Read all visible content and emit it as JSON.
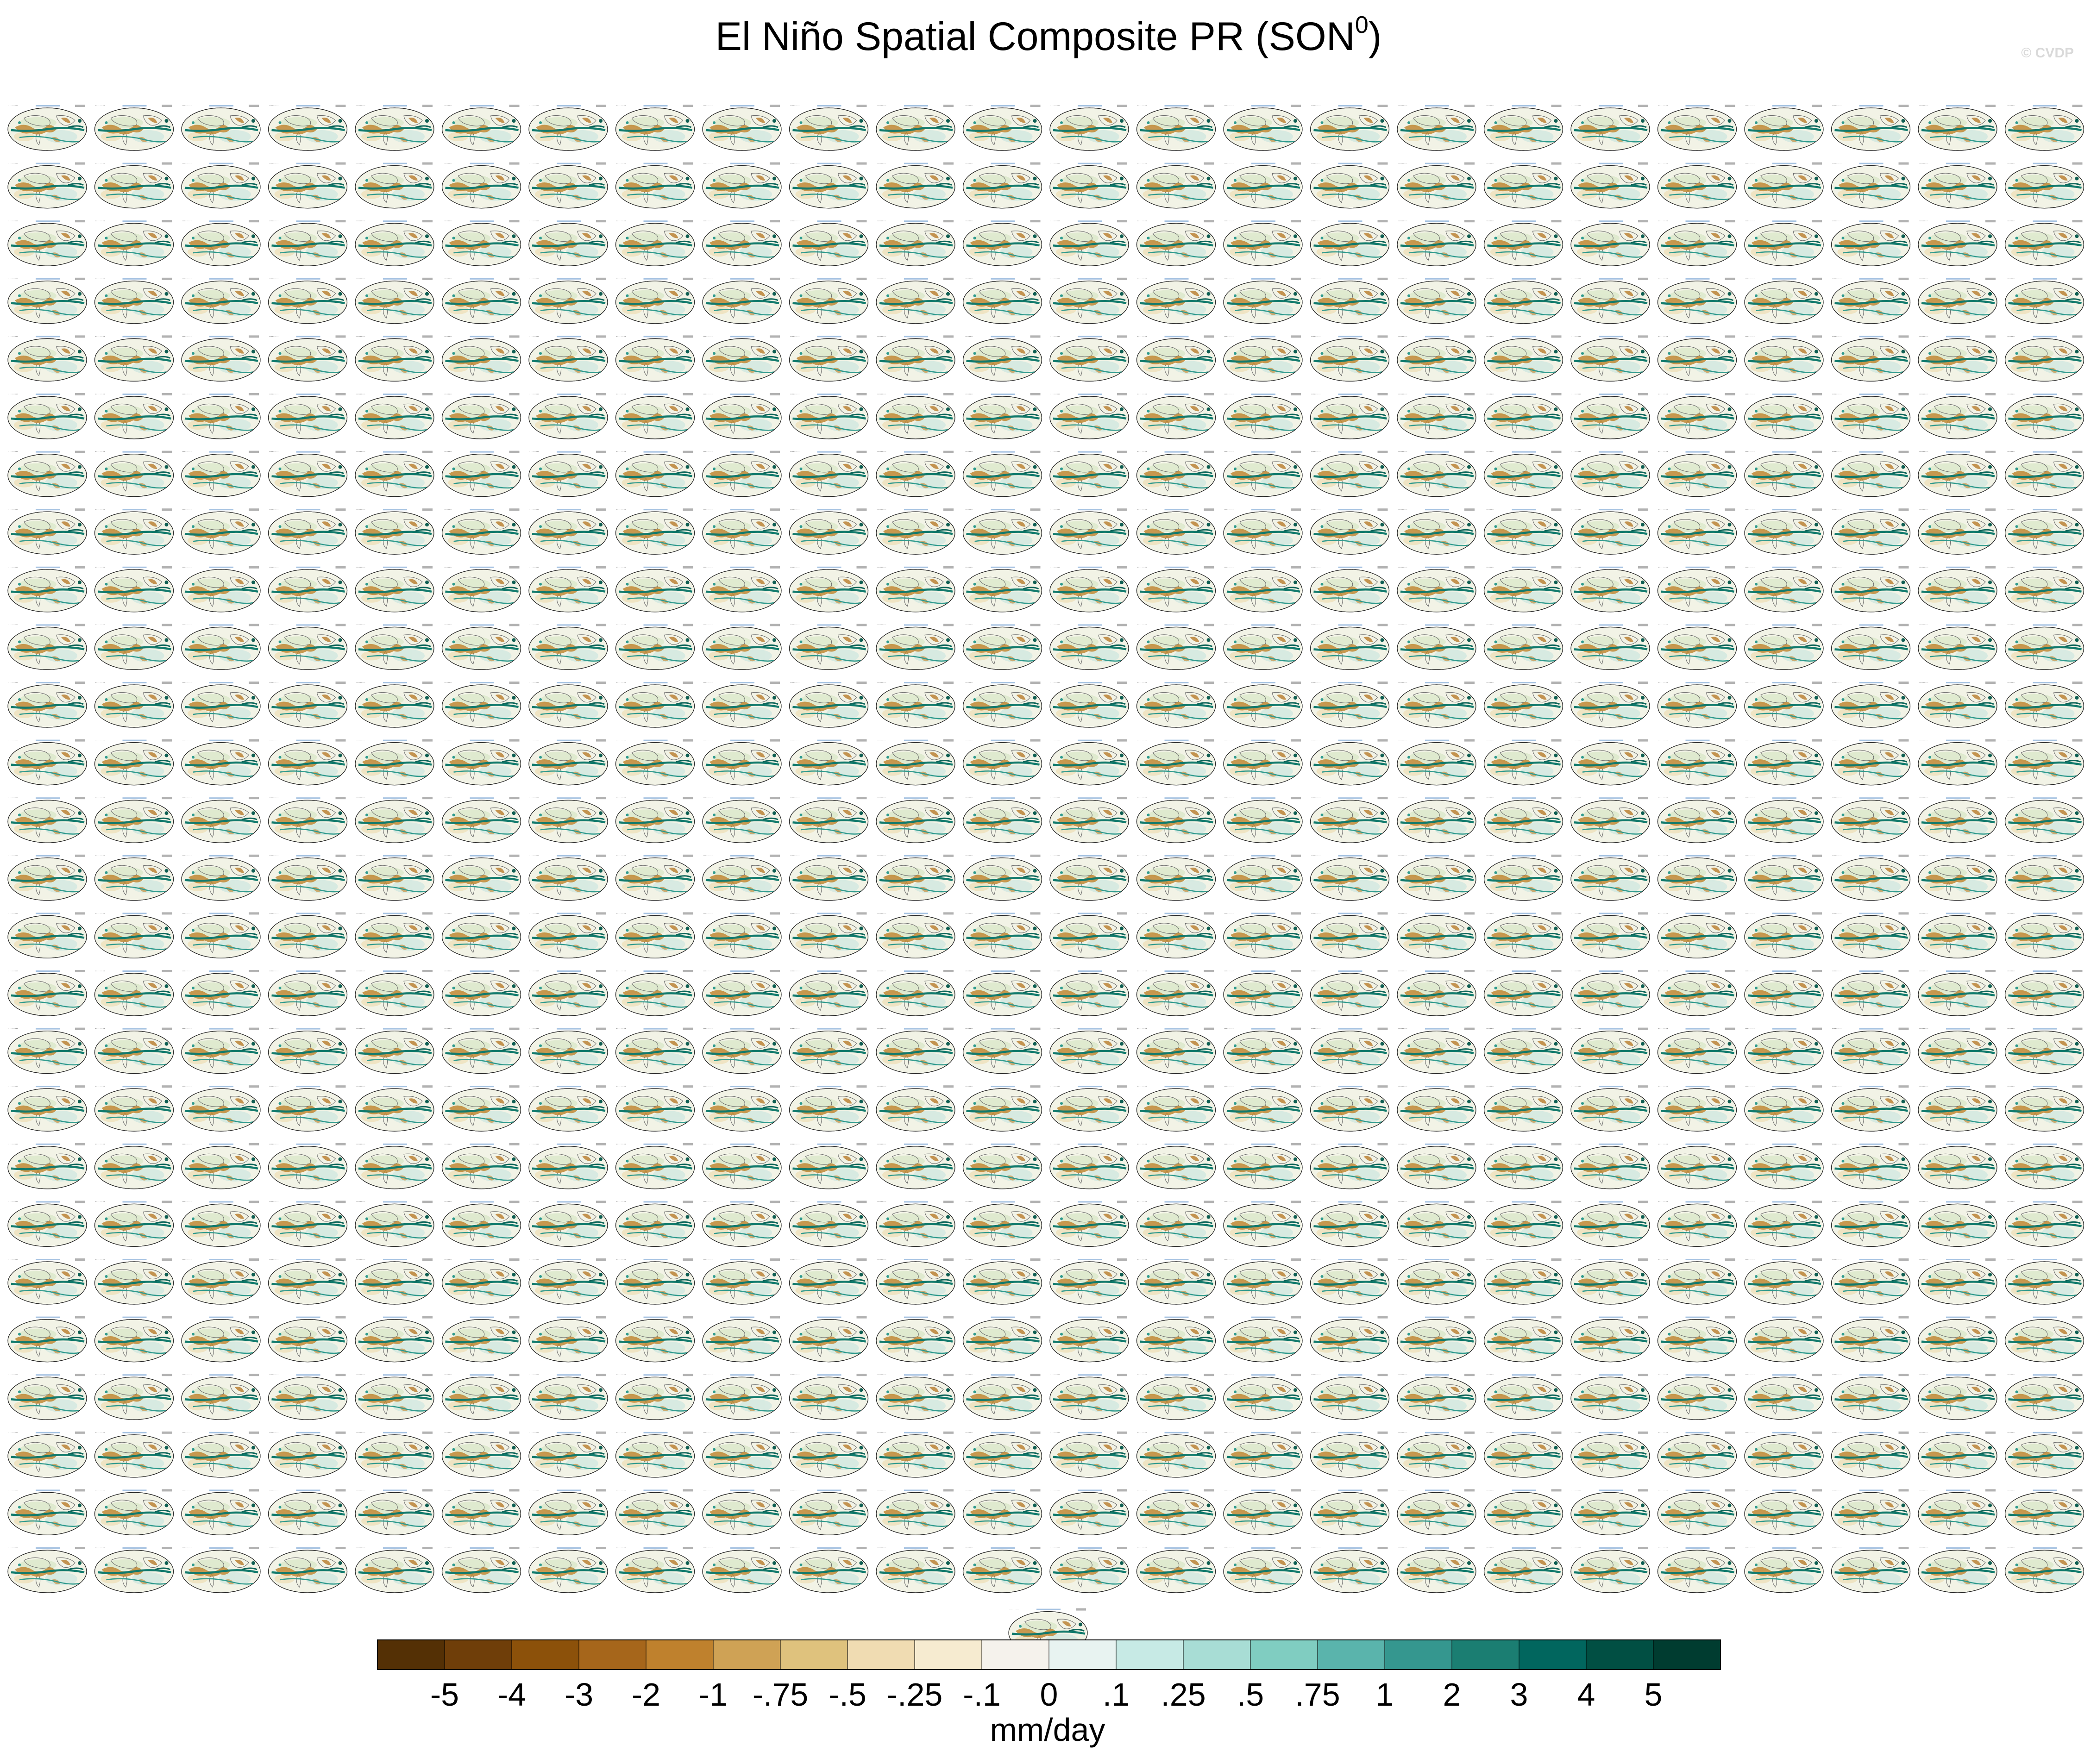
{
  "title": {
    "main": "El Niño Spatial Composite PR (SON",
    "superscript": "0",
    "close": ")"
  },
  "watermark": "© CVDP",
  "chart_data": {
    "type": "heatmap",
    "title": "El Niño Spatial Composite PR (SON⁰)",
    "panels": {
      "rows": 26,
      "columns": 24,
      "extra_centered_panels": 1,
      "projection": "Robinson global map",
      "note": "Panel header text is too small to read in the screenshot"
    },
    "colorbar": {
      "unit": "mm/day",
      "tick_labels": [
        "-5",
        "-4",
        "-3",
        "-2",
        "-1",
        "-.75",
        "-.5",
        "-.25",
        "-.1",
        "0",
        ".1",
        ".25",
        ".5",
        ".75",
        "1",
        "2",
        "3",
        "4",
        "5"
      ],
      "levels": [
        -5,
        -4,
        -3,
        -2,
        -1,
        -0.75,
        -0.5,
        -0.25,
        -0.1,
        0,
        0.1,
        0.25,
        0.5,
        0.75,
        1,
        2,
        3,
        4,
        5
      ],
      "colors": [
        "#543005",
        "#6f3e09",
        "#8c510a",
        "#a6661b",
        "#bf812d",
        "#cfa255",
        "#dfc27d",
        "#f0dcb2",
        "#f6ebd0",
        "#f5f2ec",
        "#e8f3f1",
        "#c7eae5",
        "#a8ddd5",
        "#80cdc1",
        "#5ab4ac",
        "#35978f",
        "#1b7e72",
        "#01665e",
        "#014f43",
        "#003c30"
      ]
    }
  }
}
